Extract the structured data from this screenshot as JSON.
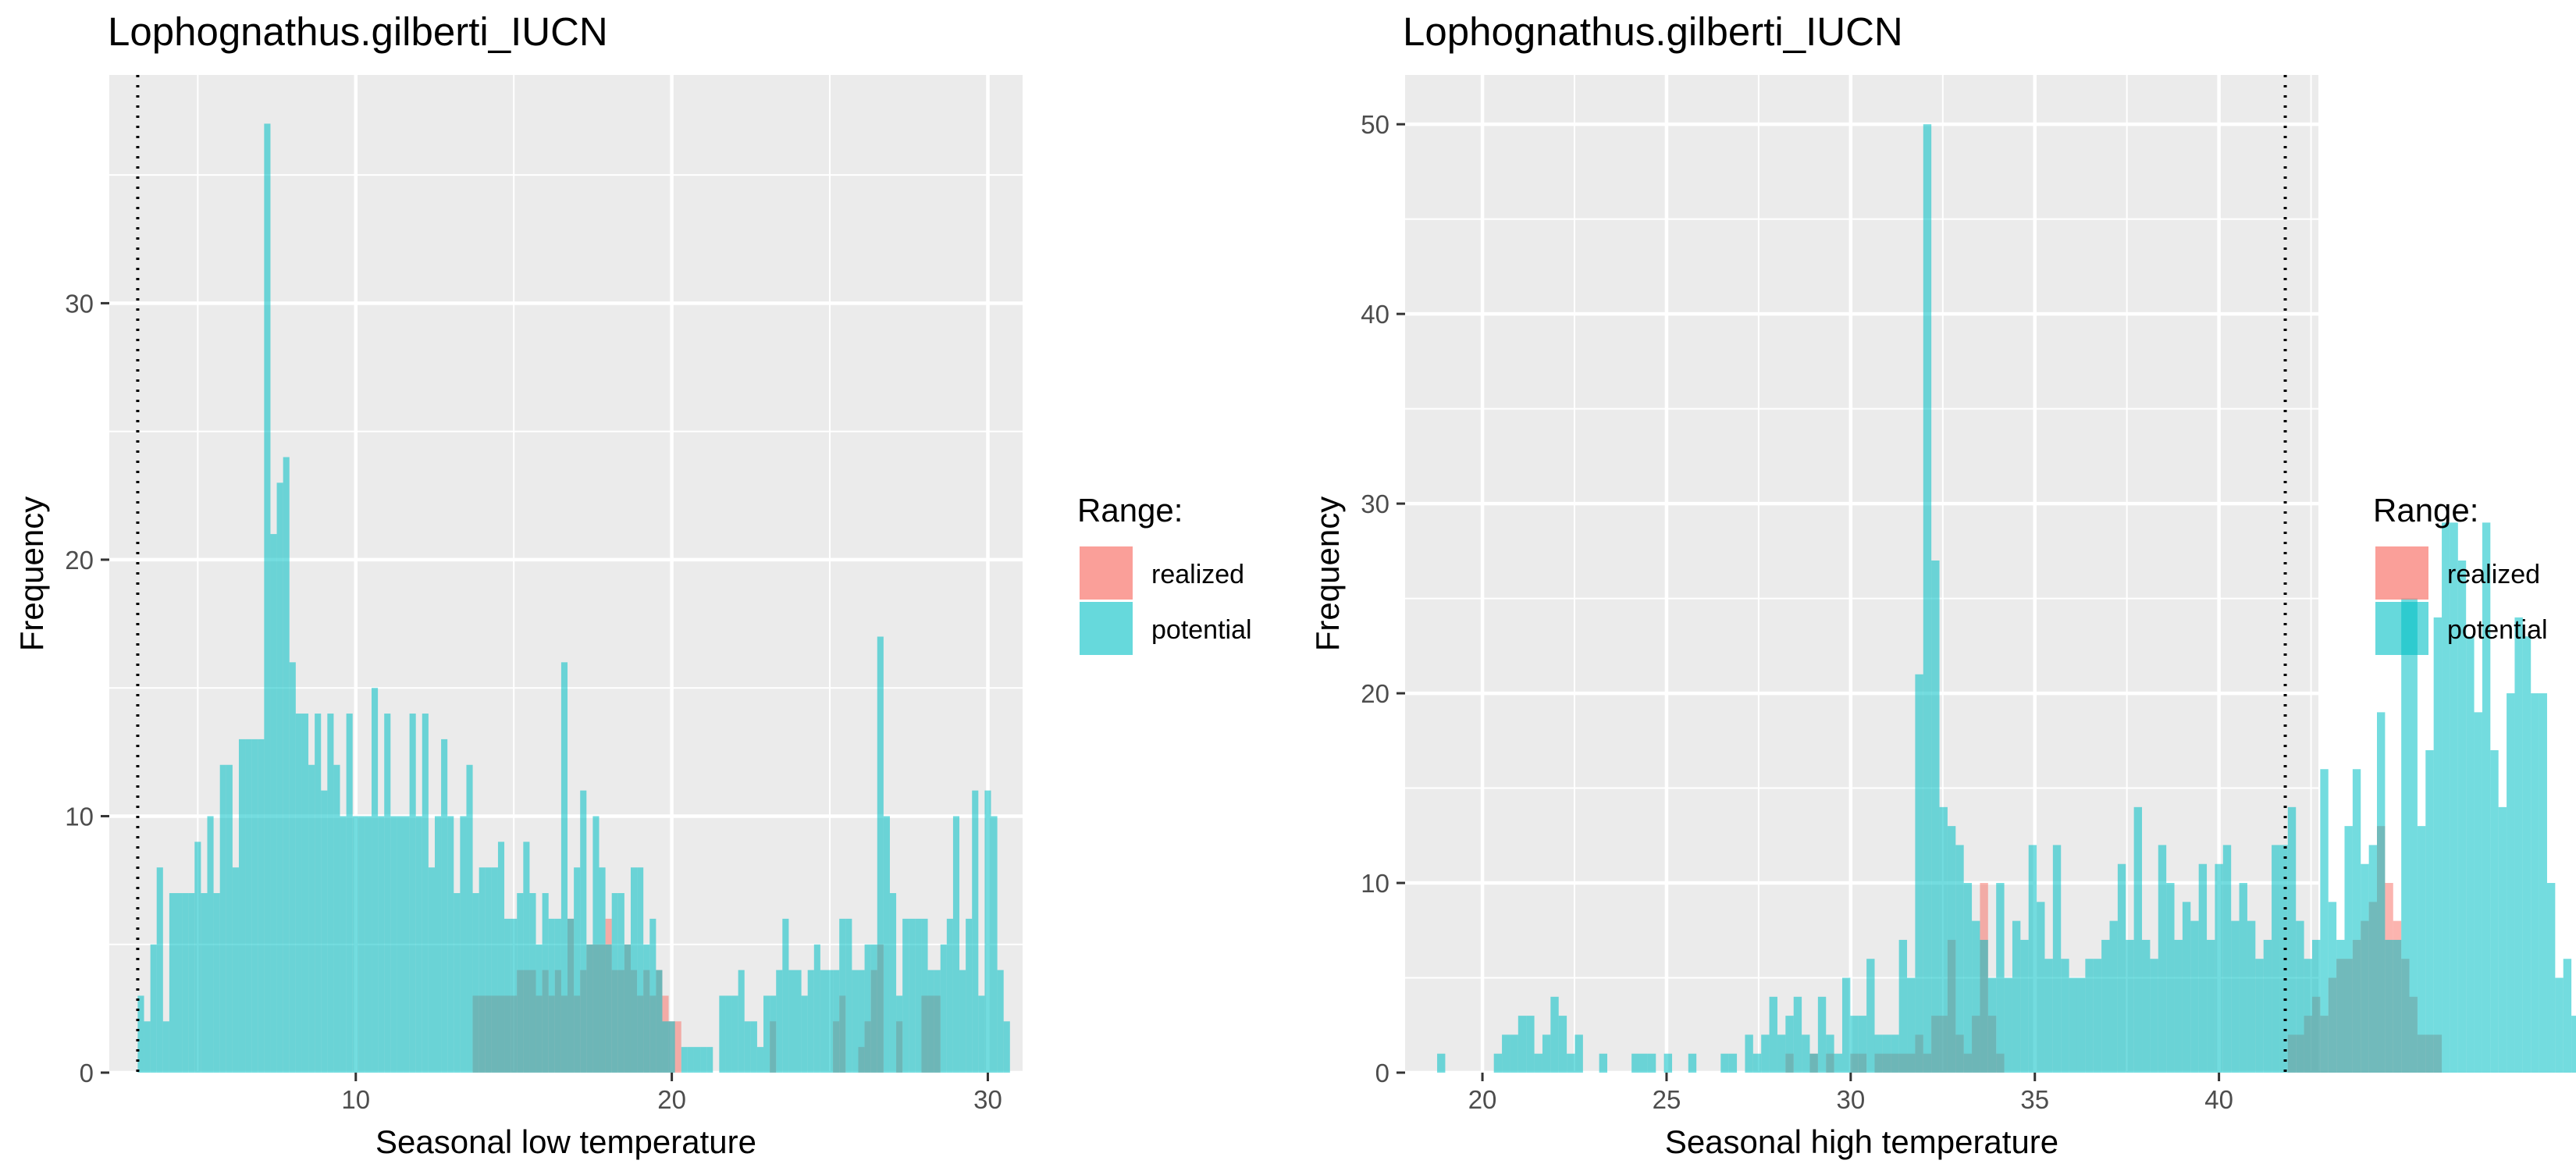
{
  "colors": {
    "realized": "#F8766D",
    "potential": "#00BFC4",
    "panel_bg": "#EBEBEB",
    "grid_major": "#FFFFFF",
    "tick_text": "#4D4D4D"
  },
  "legend": {
    "title": "Range:",
    "items": [
      "realized",
      "potential"
    ]
  },
  "chart_data": [
    {
      "type": "bar",
      "title": "Lophognathus.gilberti_IUCN",
      "xlabel": "Seasonal low temperature",
      "ylabel": "Frequency",
      "xlim": [
        2.2,
        31.1
      ],
      "ylim": [
        0,
        38.9
      ],
      "x_ticks": [
        10,
        20,
        30
      ],
      "y_ticks": [
        0,
        10,
        20,
        30
      ],
      "bin_start": 3.1,
      "bin_width": 0.2,
      "reference_line_x": 3.1,
      "series": [
        {
          "name": "realized",
          "values": [
            0,
            0,
            0,
            0,
            0,
            0,
            0,
            0,
            0,
            0,
            0,
            0,
            0,
            0,
            0,
            0,
            0,
            0,
            0,
            0,
            0,
            0,
            0,
            0,
            0,
            0,
            0,
            0,
            0,
            0,
            0,
            0,
            0,
            0,
            0,
            0,
            0,
            0,
            0,
            0,
            0,
            0,
            0,
            0,
            0,
            0,
            0,
            0,
            0,
            0,
            0,
            0,
            0,
            3,
            3,
            3,
            3,
            3,
            3,
            3,
            4,
            4,
            4,
            3,
            4,
            3,
            4,
            3,
            6,
            3,
            4,
            5,
            5,
            5,
            6,
            4,
            4,
            5,
            4,
            3,
            4,
            3,
            4,
            3,
            2,
            2,
            0,
            0,
            0,
            0,
            0,
            0,
            0,
            0,
            0,
            0,
            0,
            0,
            0,
            0,
            2,
            0,
            0,
            0,
            0,
            0,
            0,
            0,
            0,
            0,
            2,
            3,
            0,
            0,
            1,
            2,
            4,
            5,
            0,
            0,
            2,
            0,
            0,
            0,
            3,
            3,
            3,
            0,
            0,
            0,
            0,
            0,
            0,
            0,
            0,
            0,
            0,
            0,
            0,
            0,
            0,
            0,
            0,
            0,
            0,
            0,
            0
          ]
        },
        {
          "name": "potential",
          "values": [
            3,
            2,
            5,
            8,
            2,
            7,
            7,
            7,
            7,
            9,
            7,
            10,
            7,
            12,
            12,
            8,
            13,
            13,
            13,
            13,
            37,
            21,
            23,
            24,
            16,
            14,
            14,
            12,
            14,
            11,
            14,
            12,
            10,
            14,
            10,
            10,
            10,
            15,
            10,
            14,
            10,
            10,
            10,
            14,
            10,
            14,
            8,
            10,
            13,
            10,
            7,
            10,
            12,
            7,
            8,
            8,
            8,
            9,
            6,
            6,
            7,
            9,
            7,
            5,
            7,
            6,
            6,
            16,
            6,
            8,
            11,
            5,
            10,
            8,
            5,
            7,
            7,
            5,
            8,
            8,
            5,
            6,
            4,
            2,
            2,
            0,
            1,
            1,
            1,
            1,
            1,
            0,
            3,
            3,
            3,
            4,
            2,
            2,
            1,
            3,
            3,
            4,
            6,
            4,
            4,
            3,
            4,
            5,
            4,
            4,
            4,
            6,
            6,
            4,
            4,
            5,
            5,
            17,
            10,
            7,
            3,
            6,
            6,
            6,
            6,
            4,
            4,
            5,
            6,
            10,
            4,
            6,
            11,
            3,
            11,
            10,
            4,
            2,
            0,
            0,
            0,
            0,
            0,
            0,
            0,
            0,
            0
          ]
        }
      ]
    },
    {
      "type": "bar",
      "title": "Lophognathus.gilberti_IUCN",
      "xlabel": "Seasonal high temperature",
      "ylabel": "Frequency",
      "xlim": [
        17.9,
        42.7
      ],
      "ylim": [
        0,
        52.6
      ],
      "x_ticks": [
        20,
        25,
        30,
        35,
        40
      ],
      "y_ticks": [
        0,
        10,
        20,
        30,
        40,
        50
      ],
      "bin_start": 18.55,
      "bin_width": 0.22,
      "reference_line_x": 41.8,
      "series": [
        {
          "name": "realized",
          "values": [
            0,
            0,
            0,
            0,
            0,
            0,
            0,
            0,
            0,
            0,
            0,
            0,
            0,
            0,
            0,
            0,
            0,
            0,
            0,
            0,
            0,
            0,
            0,
            0,
            0,
            0,
            0,
            0,
            0,
            0,
            0,
            0,
            0,
            0,
            0,
            0,
            0,
            0,
            0,
            0,
            0,
            0,
            0,
            0,
            1,
            0,
            0,
            1,
            0,
            1,
            0,
            0,
            1,
            1,
            0,
            1,
            1,
            1,
            1,
            1,
            2,
            1,
            3,
            3,
            7,
            2,
            1,
            3,
            10,
            3,
            1,
            0,
            0,
            0,
            0,
            0,
            0,
            0,
            0,
            0,
            0,
            0,
            0,
            0,
            0,
            0,
            0,
            0,
            0,
            0,
            0,
            0,
            0,
            0,
            0,
            0,
            0,
            0,
            0,
            0,
            0,
            0,
            0,
            0,
            0,
            0,
            2,
            2,
            3,
            4,
            3,
            5,
            6,
            6,
            7,
            8,
            9,
            13,
            10,
            8,
            6,
            4,
            2,
            2,
            2,
            0,
            0,
            0,
            0,
            0,
            0,
            0,
            0,
            0,
            0,
            0,
            0,
            0
          ]
        },
        {
          "name": "potential",
          "values": [
            0,
            1,
            0,
            0,
            0,
            0,
            0,
            0,
            1,
            2,
            2,
            3,
            3,
            1,
            2,
            4,
            3,
            1,
            2,
            0,
            0,
            1,
            0,
            0,
            0,
            1,
            1,
            1,
            0,
            1,
            0,
            0,
            1,
            0,
            0,
            0,
            1,
            1,
            0,
            2,
            1,
            2,
            4,
            2,
            3,
            4,
            2,
            1,
            4,
            2,
            1,
            5,
            3,
            3,
            6,
            2,
            2,
            2,
            7,
            5,
            21,
            50,
            27,
            14,
            13,
            12,
            10,
            8,
            7,
            5,
            10,
            5,
            8,
            7,
            12,
            9,
            6,
            12,
            6,
            5,
            5,
            6,
            6,
            7,
            8,
            11,
            7,
            14,
            7,
            6,
            12,
            10,
            7,
            9,
            8,
            11,
            7,
            11,
            12,
            8,
            10,
            8,
            6,
            7,
            12,
            12,
            14,
            8,
            6,
            7,
            16,
            9,
            7,
            13,
            16,
            11,
            12,
            19,
            7,
            7,
            25,
            25,
            13,
            17,
            24,
            29,
            29,
            27,
            23,
            19,
            29,
            17,
            14,
            20,
            24,
            23,
            20,
            20,
            10,
            5,
            6,
            3,
            0
          ]
        }
      ]
    }
  ]
}
